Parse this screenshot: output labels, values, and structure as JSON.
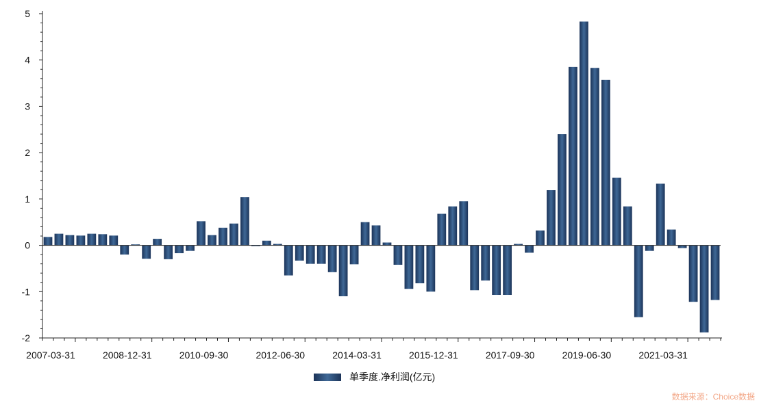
{
  "chart_data": {
    "type": "bar",
    "series": [
      {
        "name": "单季度.净利润(亿元)",
        "values": [
          0.18,
          0.25,
          0.22,
          0.21,
          0.25,
          0.24,
          0.21,
          -0.2,
          0.02,
          -0.29,
          0.14,
          -0.3,
          -0.17,
          -0.12,
          0.52,
          0.22,
          0.38,
          0.47,
          1.04,
          -0.02,
          0.1,
          0.03,
          -0.65,
          -0.33,
          -0.4,
          -0.4,
          -0.58,
          -1.1,
          -0.41,
          0.5,
          0.43,
          0.06,
          -0.42,
          -0.94,
          -0.82,
          -1.0,
          0.68,
          0.84,
          0.95,
          -0.97,
          -0.76,
          -1.07,
          -1.07,
          0.03,
          -0.16,
          0.32,
          1.19,
          2.4,
          3.85,
          4.83,
          3.83,
          3.57,
          1.46,
          0.84,
          -1.55,
          -0.12,
          1.33,
          0.34,
          -0.06,
          -1.22,
          -1.88,
          -1.18
        ]
      }
    ],
    "x_tick_labels": [
      "2007-03-31",
      "2008-12-31",
      "2010-09-30",
      "2012-06-30",
      "2014-03-31",
      "2015-12-31",
      "2017-09-30",
      "2019-06-30",
      "2021-03-31"
    ],
    "y_ticks": [
      5,
      4,
      3,
      2,
      1,
      0,
      -1,
      -2
    ],
    "ylim": [
      -2,
      5
    ],
    "legend": "bottom-center",
    "colors": {
      "bar_dark": "#1b3358",
      "bar_light": "#3f6896"
    }
  },
  "legend_label": "单季度.净利润(亿元)",
  "source_text": "数据来源：Choice数据"
}
